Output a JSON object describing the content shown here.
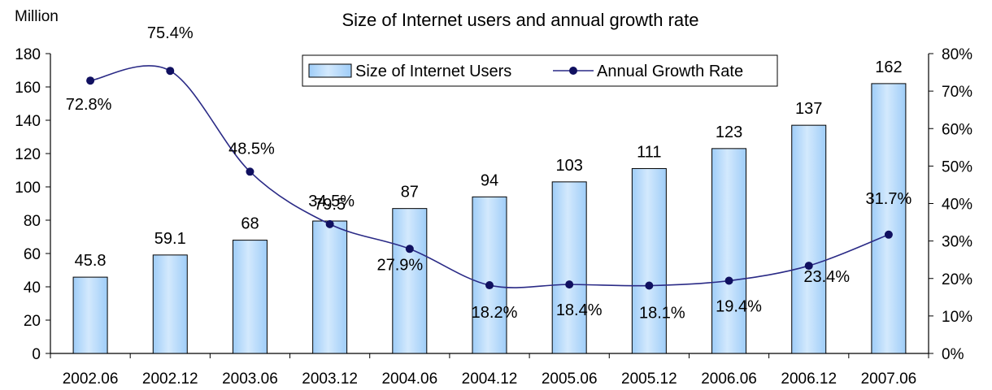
{
  "chart_data": {
    "type": "bar",
    "title": "Size of Internet users and annual growth rate",
    "ylabel": "Million",
    "categories": [
      "2002.06",
      "2002.12",
      "2003.06",
      "2003.12",
      "2004.06",
      "2004.12",
      "2005.06",
      "2005.12",
      "2006.06",
      "2006.12",
      "2007.06"
    ],
    "series": [
      {
        "name": "Size of Internet Users",
        "type": "bar",
        "axis": "left",
        "values": [
          45.8,
          59.1,
          68,
          79.5,
          87,
          94,
          103,
          111,
          123,
          137,
          162
        ],
        "labels": [
          "45.8",
          "59.1",
          "68",
          "79.5",
          "87",
          "94",
          "103",
          "111",
          "123",
          "137",
          "162"
        ]
      },
      {
        "name": "Annual Growth Rate",
        "type": "line",
        "axis": "right",
        "values": [
          72.8,
          75.4,
          48.5,
          34.5,
          27.9,
          18.2,
          18.4,
          18.1,
          19.4,
          23.4,
          31.7
        ],
        "labels": [
          "72.8%",
          "75.4%",
          "48.5%",
          "34.5%",
          "27.9%",
          "18.2%",
          "18.4%",
          "18.1%",
          "19.4%",
          "23.4%",
          "31.7%"
        ]
      }
    ],
    "ylim": [
      0,
      180
    ],
    "yticks": [
      "0",
      "20",
      "40",
      "60",
      "80",
      "100",
      "120",
      "140",
      "160",
      "180"
    ],
    "y2lim": [
      0,
      80
    ],
    "y2ticks": [
      "0%",
      "10%",
      "20%",
      "30%",
      "40%",
      "50%",
      "60%",
      "70%",
      "80%"
    ],
    "grid": false,
    "legend_position": "top-center",
    "colors": {
      "bar_fill": "#9fcdf8",
      "bar_fill_light": "#d3e9fd",
      "bar_edge": "#000000",
      "line": "#2a2a86",
      "marker": "#101060"
    }
  }
}
